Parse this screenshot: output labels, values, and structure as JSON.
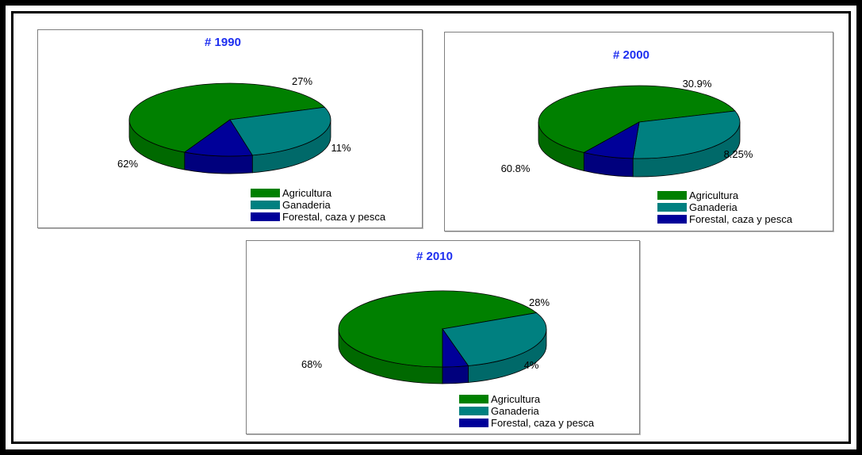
{
  "chart_data": [
    {
      "type": "pie",
      "title": "# 1990",
      "categories": [
        "Agricultura",
        "Ganaderia",
        "Forestal, caza y pesca"
      ],
      "values": [
        62,
        27,
        11
      ],
      "labels": [
        "62%",
        "27%",
        "11%"
      ],
      "legend": "bottom-right"
    },
    {
      "type": "pie",
      "title": "# 2000",
      "categories": [
        "Agricultura",
        "Ganaderia",
        "Forestal, caza y pesca"
      ],
      "values": [
        60.8,
        30.9,
        8.25
      ],
      "labels": [
        "60.8%",
        "30.9%",
        "8.25%"
      ],
      "legend": "bottom-right"
    },
    {
      "type": "pie",
      "title": "# 2010",
      "categories": [
        "Agricultura",
        "Ganaderia",
        "Forestal, caza y pesca"
      ],
      "values": [
        68,
        28,
        4
      ],
      "labels": [
        "68%",
        "28%",
        "4%"
      ],
      "legend": "bottom-right"
    }
  ],
  "colors": {
    "agricultura": "#008000",
    "ganaderia": "#008080",
    "forestal": "#000099",
    "title": "#1e2ff0"
  }
}
